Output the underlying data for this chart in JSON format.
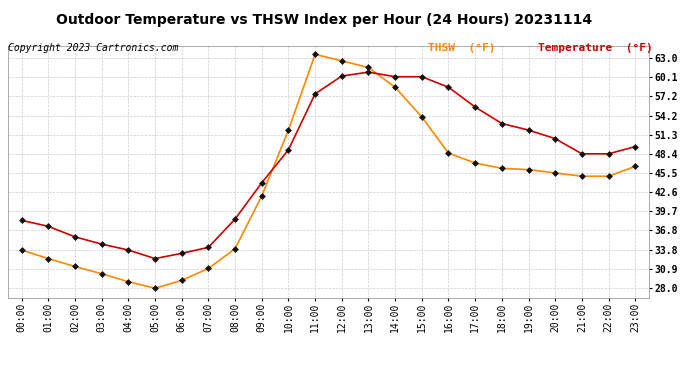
{
  "title": "Outdoor Temperature vs THSW Index per Hour (24 Hours) 20231114",
  "copyright": "Copyright 2023 Cartronics.com",
  "legend_thsw": "THSW  (°F)",
  "legend_temp": "Temperature  (°F)",
  "hours": [
    0,
    1,
    2,
    3,
    4,
    5,
    6,
    7,
    8,
    9,
    10,
    11,
    12,
    13,
    14,
    15,
    16,
    17,
    18,
    19,
    20,
    21,
    22,
    23
  ],
  "temperature": [
    38.3,
    37.4,
    35.8,
    34.7,
    33.8,
    32.5,
    33.3,
    34.2,
    38.5,
    44.0,
    49.0,
    57.5,
    60.2,
    60.8,
    60.1,
    60.1,
    58.5,
    55.5,
    53.0,
    52.0,
    50.7,
    48.4,
    48.4,
    49.5
  ],
  "thsw": [
    33.8,
    32.5,
    31.3,
    30.2,
    29.0,
    28.0,
    29.2,
    31.0,
    34.0,
    42.0,
    52.0,
    63.5,
    62.5,
    61.5,
    58.5,
    54.0,
    48.5,
    47.0,
    46.2,
    46.0,
    45.5,
    45.0,
    45.0,
    46.5
  ],
  "temp_color": "#cc0000",
  "thsw_color": "#ff8800",
  "marker_color": "#111111",
  "background_color": "#ffffff",
  "grid_color": "#cccccc",
  "title_color": "#000000",
  "copyright_color": "#000000",
  "legend_thsw_color": "#ff8800",
  "legend_temp_color": "#cc0000",
  "yticks": [
    28.0,
    30.9,
    33.8,
    36.8,
    39.7,
    42.6,
    45.5,
    48.4,
    51.3,
    54.2,
    57.2,
    60.1,
    63.0
  ],
  "ylim": [
    26.5,
    64.8
  ],
  "title_fontsize": 10,
  "copyright_fontsize": 7,
  "axis_fontsize": 7,
  "legend_fontsize": 8
}
